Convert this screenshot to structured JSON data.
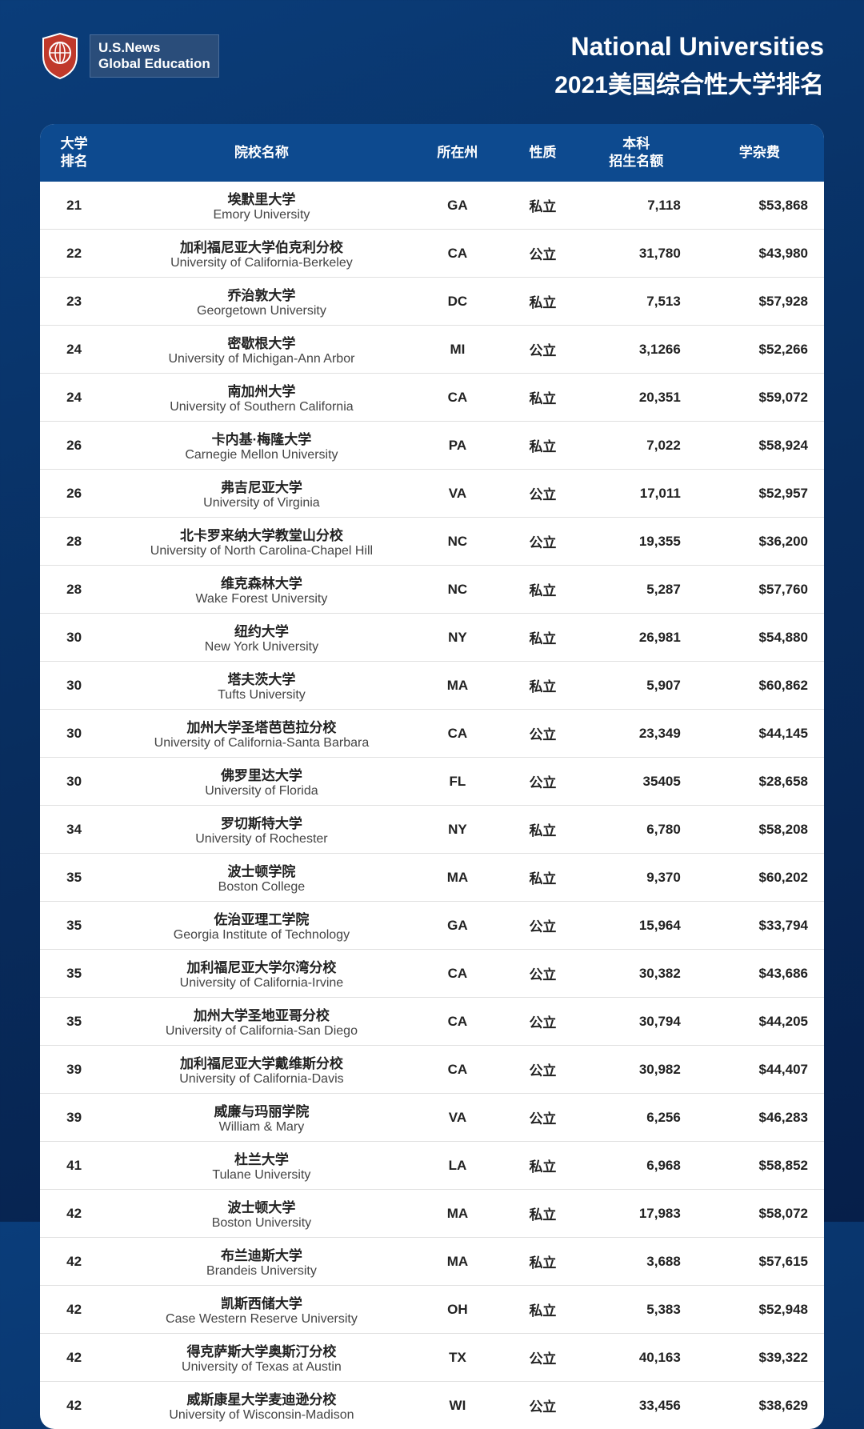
{
  "header": {
    "logo_line1": "U.S.News",
    "logo_line2": "Global Education",
    "title1": "National Universities",
    "title2": "2021美国综合性大学排名"
  },
  "table": {
    "columns": {
      "rank": "大学\n排名",
      "name": "院校名称",
      "state": "所在州",
      "type": "性质",
      "enroll": "本科\n招生名额",
      "fee": "学杂费"
    },
    "rows": [
      {
        "rank": "21",
        "cn": "埃默里大学",
        "en": "Emory University",
        "state": "GA",
        "type": "私立",
        "enroll": "7,118",
        "fee": "$53,868"
      },
      {
        "rank": "22",
        "cn": "加利福尼亚大学伯克利分校",
        "en": "University of California-Berkeley",
        "state": "CA",
        "type": "公立",
        "enroll": "31,780",
        "fee": "$43,980"
      },
      {
        "rank": "23",
        "cn": "乔治敦大学",
        "en": "Georgetown University",
        "state": "DC",
        "type": "私立",
        "enroll": "7,513",
        "fee": "$57,928"
      },
      {
        "rank": "24",
        "cn": "密歇根大学",
        "en": "University of Michigan-Ann Arbor",
        "state": "MI",
        "type": "公立",
        "enroll": "3,1266",
        "fee": "$52,266"
      },
      {
        "rank": "24",
        "cn": "南加州大学",
        "en": "University of Southern California",
        "state": "CA",
        "type": "私立",
        "enroll": "20,351",
        "fee": "$59,072"
      },
      {
        "rank": "26",
        "cn": "卡内基·梅隆大学",
        "en": "Carnegie Mellon University",
        "state": "PA",
        "type": "私立",
        "enroll": "7,022",
        "fee": "$58,924"
      },
      {
        "rank": "26",
        "cn": "弗吉尼亚大学",
        "en": "University of Virginia",
        "state": "VA",
        "type": "公立",
        "enroll": "17,011",
        "fee": "$52,957"
      },
      {
        "rank": "28",
        "cn": "北卡罗来纳大学教堂山分校",
        "en": "University of North Carolina-Chapel Hill",
        "state": "NC",
        "type": "公立",
        "enroll": "19,355",
        "fee": "$36,200"
      },
      {
        "rank": "28",
        "cn": "维克森林大学",
        "en": "Wake Forest University",
        "state": "NC",
        "type": "私立",
        "enroll": "5,287",
        "fee": "$57,760"
      },
      {
        "rank": "30",
        "cn": "纽约大学",
        "en": "New York University",
        "state": "NY",
        "type": "私立",
        "enroll": "26,981",
        "fee": "$54,880"
      },
      {
        "rank": "30",
        "cn": "塔夫茨大学",
        "en": "Tufts University",
        "state": "MA",
        "type": "私立",
        "enroll": "5,907",
        "fee": "$60,862"
      },
      {
        "rank": "30",
        "cn": "加州大学圣塔芭芭拉分校",
        "en": "University of California-Santa Barbara",
        "state": "CA",
        "type": "公立",
        "enroll": "23,349",
        "fee": "$44,145"
      },
      {
        "rank": "30",
        "cn": "佛罗里达大学",
        "en": "University of Florida",
        "state": "FL",
        "type": "公立",
        "enroll": "35405",
        "fee": "$28,658"
      },
      {
        "rank": "34",
        "cn": "罗切斯特大学",
        "en": "University of Rochester",
        "state": "NY",
        "type": "私立",
        "enroll": "6,780",
        "fee": "$58,208"
      },
      {
        "rank": "35",
        "cn": "波士顿学院",
        "en": "Boston College",
        "state": "MA",
        "type": "私立",
        "enroll": "9,370",
        "fee": "$60,202"
      },
      {
        "rank": "35",
        "cn": "佐治亚理工学院",
        "en": "Georgia Institute of Technology",
        "state": "GA",
        "type": "公立",
        "enroll": "15,964",
        "fee": "$33,794"
      },
      {
        "rank": "35",
        "cn": "加利福尼亚大学尔湾分校",
        "en": "University of California-Irvine",
        "state": "CA",
        "type": "公立",
        "enroll": "30,382",
        "fee": "$43,686"
      },
      {
        "rank": "35",
        "cn": "加州大学圣地亚哥分校",
        "en": "University of California-San Diego",
        "state": "CA",
        "type": "公立",
        "enroll": "30,794",
        "fee": "$44,205"
      },
      {
        "rank": "39",
        "cn": "加利福尼亚大学戴维斯分校",
        "en": "University of California-Davis",
        "state": "CA",
        "type": "公立",
        "enroll": "30,982",
        "fee": "$44,407"
      },
      {
        "rank": "39",
        "cn": "威廉与玛丽学院",
        "en": "William & Mary",
        "state": "VA",
        "type": "公立",
        "enroll": "6,256",
        "fee": "$46,283"
      },
      {
        "rank": "41",
        "cn": "杜兰大学",
        "en": "Tulane University",
        "state": "LA",
        "type": "私立",
        "enroll": "6,968",
        "fee": "$58,852"
      },
      {
        "rank": "42",
        "cn": "波士顿大学",
        "en": "Boston University",
        "state": "MA",
        "type": "私立",
        "enroll": "17,983",
        "fee": "$58,072"
      },
      {
        "rank": "42",
        "cn": "布兰迪斯大学",
        "en": "Brandeis University",
        "state": "MA",
        "type": "私立",
        "enroll": "3,688",
        "fee": "$57,615"
      },
      {
        "rank": "42",
        "cn": "凯斯西储大学",
        "en": "Case Western Reserve University",
        "state": "OH",
        "type": "私立",
        "enroll": "5,383",
        "fee": "$52,948"
      },
      {
        "rank": "42",
        "cn": "得克萨斯大学奥斯汀分校",
        "en": "University of Texas at Austin",
        "state": "TX",
        "type": "公立",
        "enroll": "40,163",
        "fee": "$39,322"
      },
      {
        "rank": "42",
        "cn": "威斯康星大学麦迪逊分校",
        "en": "University of Wisconsin-Madison",
        "state": "WI",
        "type": "公立",
        "enroll": "33,456",
        "fee": "$38,629"
      }
    ]
  }
}
